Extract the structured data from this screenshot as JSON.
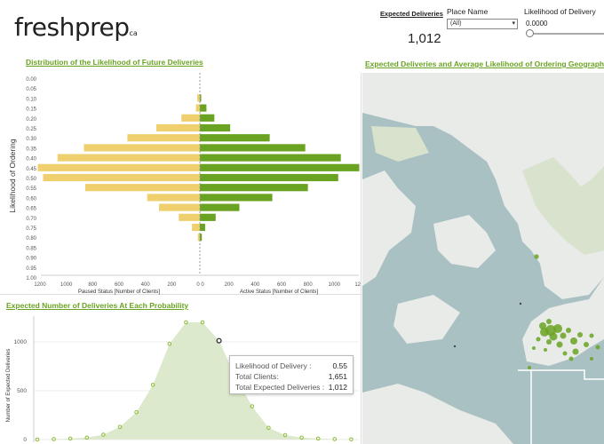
{
  "header": {
    "logo_text": "freshprep",
    "logo_suffix": "ca",
    "expected_deliveries_label": "Expected Deliveries",
    "expected_deliveries_value": "1,012",
    "place_name_label": "Place Name",
    "place_name_value": "(All)",
    "likelihood_label": "Likelihood of Delivery",
    "likelihood_value": "0.0000",
    "likelihood_slider_level": 0
  },
  "sections": {
    "distribution_title": "Distribution of the Likelihood of Future Deliveries",
    "map_title": "Expected Deliveries and  Average Likelihood of Ordering  Geographically",
    "expected_title": "Expected Number of Deliveries  At Each Probability"
  },
  "tooltip": {
    "rows": [
      {
        "label": "Likelihood of Delivery :",
        "value": "0.55"
      },
      {
        "label": "Total Clients:",
        "value": "1,651"
      },
      {
        "label": "Total Expected Deliveries :",
        "value": "1,012"
      }
    ]
  },
  "colors": {
    "paused": "#f0cf6e",
    "active": "#6aa322",
    "title_green": "#6aa322",
    "area_fill": "#dde9cc",
    "map_water": "#a9c1c2",
    "map_land": "#e8ebe8",
    "map_park": "#d8e2cd"
  },
  "chart_data": [
    {
      "type": "bar",
      "orientation": "horizontal-butterfly",
      "title": "Distribution of the Likelihood of Future Deliveries",
      "ylabel": "Likelihood of Ordering",
      "left_xlabel": "Paused Status [Number of Clients]",
      "right_xlabel": "Active Status [Number of Clients]",
      "categories": [
        "0.00",
        "0.05",
        "0.10",
        "0.15",
        "0.20",
        "0.25",
        "0.30",
        "0.35",
        "0.40",
        "0.45",
        "0.50",
        "0.55",
        "0.60",
        "0.65",
        "0.70",
        "0.75",
        "0.80",
        "0.85",
        "0.90",
        "0.95",
        "1.00"
      ],
      "x_ticks_left": [
        "1200",
        "1000",
        "800",
        "600",
        "400",
        "200",
        "0"
      ],
      "x_ticks_right": [
        "0",
        "200",
        "400",
        "600",
        "800",
        "1000",
        "1200"
      ],
      "xlim": [
        0,
        1200
      ],
      "series": [
        {
          "name": "Paused Status",
          "values": [
            0,
            0,
            20,
            30,
            140,
            330,
            550,
            880,
            1080,
            1230,
            1190,
            870,
            400,
            310,
            160,
            60,
            15,
            0,
            0,
            0,
            0
          ]
        },
        {
          "name": "Active Status",
          "values": [
            0,
            0,
            10,
            50,
            110,
            230,
            530,
            800,
            1070,
            1210,
            1050,
            820,
            550,
            300,
            120,
            40,
            15,
            0,
            0,
            0,
            0
          ]
        }
      ]
    },
    {
      "type": "area",
      "title": "Expected Number of Deliveries  At Each Probability",
      "ylabel": "Number of Expected Deliveries",
      "y_ticks": [
        "0",
        "500",
        "1000"
      ],
      "ylim": [
        0,
        1200
      ],
      "x": [
        "0.00",
        "0.05",
        "0.10",
        "0.15",
        "0.20",
        "0.25",
        "0.30",
        "0.35",
        "0.40",
        "0.45",
        "0.50",
        "0.55",
        "0.60",
        "0.65",
        "0.70",
        "0.75",
        "0.80",
        "0.85",
        "0.90",
        "0.95",
        "1.00"
      ],
      "values": [
        0,
        5,
        10,
        20,
        50,
        130,
        280,
        560,
        980,
        1200,
        1200,
        1012,
        640,
        340,
        120,
        45,
        20,
        10,
        5,
        2,
        0
      ]
    }
  ]
}
